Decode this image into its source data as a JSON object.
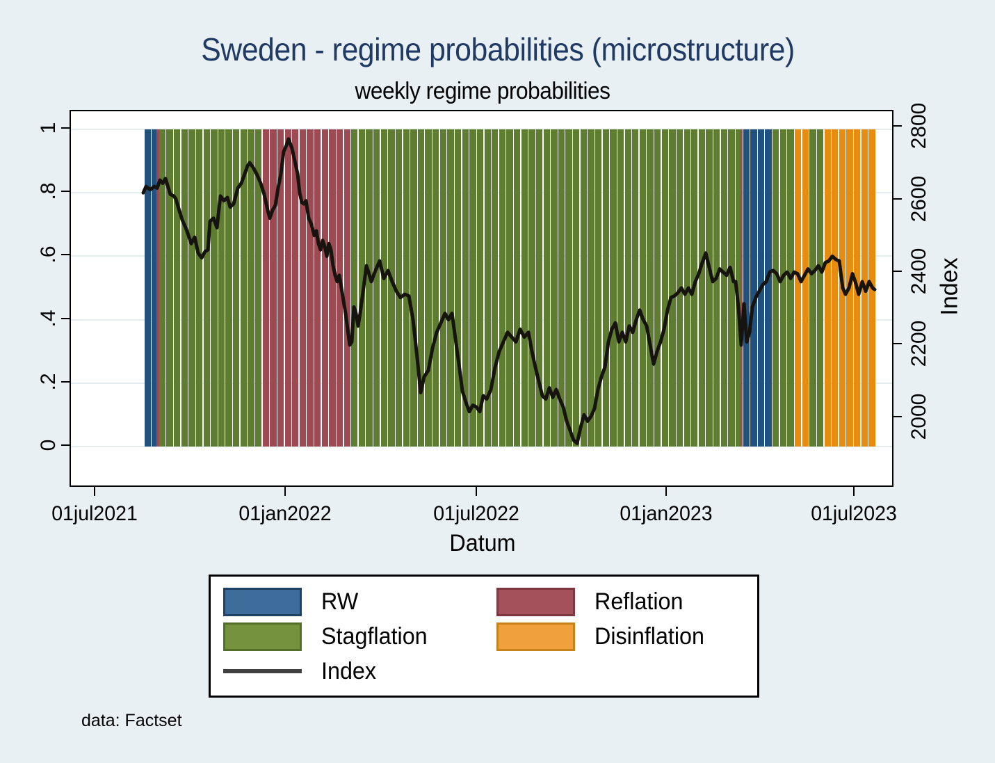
{
  "title": "Sweden - regime probabilities (microstructure)",
  "subtitle": "weekly regime probabilities",
  "note": "data: Factset",
  "colors": {
    "background": "#e9f0f3",
    "title": "#203a66",
    "grid": "#e3ecef",
    "index_line": "#17130e",
    "bar_RW": "#21517e",
    "bar_Stagflation": "#5e7d31",
    "bar_Reflation": "#9d4a53",
    "bar_Disinflation": "#e78c0f",
    "legend_RW": "#3f6d9b",
    "legend_RW_border": "#1e4266",
    "legend_Stagflation": "#75923e",
    "legend_Stagflation_border": "#546f27",
    "legend_Reflation": "#a4515c",
    "legend_Reflation_border": "#7d3540",
    "legend_Disinflation": "#f0a03c",
    "legend_Disinflation_border": "#c8821c",
    "legend_Index_line": "#404040"
  },
  "chart_data": {
    "type": "bar+line",
    "title": "Sweden - regime probabilities (microstructure)",
    "subtitle": "weekly regime probabilities",
    "x_axis": {
      "label": "Datum",
      "ticks": [
        "01jul2021",
        "01jan2022",
        "01jul2022",
        "01jan2023",
        "01jul2023"
      ]
    },
    "y_left_axis": {
      "label": "",
      "ticks": [
        "0",
        ".2",
        ".4",
        ".6",
        ".8",
        "1"
      ],
      "range": [
        0,
        1
      ],
      "note": "regime probability, all weekly bars have height 1"
    },
    "y_right_axis": {
      "label": "Index",
      "ticks": [
        "2000",
        "2200",
        "2400",
        "2600",
        "2800"
      ],
      "index_at_prob0": 1921,
      "index_at_prob1": 2795
    },
    "legend": [
      {
        "label": "RW",
        "type": "bar",
        "fill": "#3f6d9b",
        "border": "#1e4266"
      },
      {
        "label": "Reflation",
        "type": "bar",
        "fill": "#a4515c",
        "border": "#7d3540"
      },
      {
        "label": "Stagflation",
        "type": "bar",
        "fill": "#75923e",
        "border": "#546f27"
      },
      {
        "label": "Disinflation",
        "type": "bar",
        "fill": "#f0a03c",
        "border": "#c8821c"
      },
      {
        "label": "Index",
        "type": "line",
        "stroke": "#404040"
      }
    ],
    "regime_runs": [
      {
        "regime": "RW",
        "weeks": 2
      },
      {
        "regime": "Reflation",
        "weeks": 1,
        "sliver": true
      },
      {
        "regime": "Stagflation",
        "weeks": 14
      },
      {
        "regime": "Reflation",
        "weeks": 12
      },
      {
        "regime": "Stagflation",
        "weeks": 53
      },
      {
        "regime": "Reflation",
        "weeks": 1,
        "sliver": true
      },
      {
        "regime": "RW",
        "weeks": 4
      },
      {
        "regime": "Stagflation",
        "weeks": 3
      },
      {
        "regime": "Disinflation",
        "weeks": 2
      },
      {
        "regime": "Stagflation",
        "weeks": 2
      },
      {
        "regime": "Disinflation",
        "weeks": 7
      }
    ],
    "index_line_points_x_prob": [
      [
        206,
        0.8
      ],
      [
        210,
        0.82
      ],
      [
        216,
        0.81
      ],
      [
        222,
        0.82
      ],
      [
        226,
        0.815
      ],
      [
        230,
        0.84
      ],
      [
        234,
        0.83
      ],
      [
        238,
        0.845
      ],
      [
        245,
        0.795
      ],
      [
        250,
        0.79
      ],
      [
        253,
        0.78
      ],
      [
        257,
        0.75
      ],
      [
        262,
        0.715
      ],
      [
        268,
        0.685
      ],
      [
        275,
        0.64
      ],
      [
        280,
        0.66
      ],
      [
        285,
        0.61
      ],
      [
        290,
        0.595
      ],
      [
        295,
        0.615
      ],
      [
        299,
        0.62
      ],
      [
        302,
        0.71
      ],
      [
        307,
        0.72
      ],
      [
        312,
        0.69
      ],
      [
        317,
        0.79
      ],
      [
        322,
        0.775
      ],
      [
        327,
        0.785
      ],
      [
        331,
        0.755
      ],
      [
        336,
        0.765
      ],
      [
        342,
        0.815
      ],
      [
        347,
        0.83
      ],
      [
        352,
        0.86
      ],
      [
        356,
        0.885
      ],
      [
        359,
        0.895
      ],
      [
        364,
        0.88
      ],
      [
        369,
        0.86
      ],
      [
        375,
        0.83
      ],
      [
        380,
        0.795
      ],
      [
        385,
        0.745
      ],
      [
        388,
        0.72
      ],
      [
        392,
        0.745
      ],
      [
        396,
        0.76
      ],
      [
        400,
        0.815
      ],
      [
        404,
        0.86
      ],
      [
        408,
        0.93
      ],
      [
        412,
        0.95
      ],
      [
        415,
        0.97
      ],
      [
        420,
        0.94
      ],
      [
        424,
        0.9
      ],
      [
        428,
        0.86
      ],
      [
        431,
        0.8
      ],
      [
        434,
        0.77
      ],
      [
        437,
        0.765
      ],
      [
        440,
        0.775
      ],
      [
        444,
        0.72
      ],
      [
        448,
        0.7
      ],
      [
        452,
        0.665
      ],
      [
        455,
        0.68
      ],
      [
        458,
        0.64
      ],
      [
        461,
        0.62
      ],
      [
        464,
        0.65
      ],
      [
        467,
        0.63
      ],
      [
        470,
        0.6
      ],
      [
        473,
        0.64
      ],
      [
        476,
        0.62
      ],
      [
        479,
        0.57
      ],
      [
        482,
        0.54
      ],
      [
        485,
        0.52
      ],
      [
        488,
        0.54
      ],
      [
        491,
        0.5
      ],
      [
        494,
        0.46
      ],
      [
        497,
        0.42
      ],
      [
        500,
        0.37
      ],
      [
        503,
        0.32
      ],
      [
        506,
        0.33
      ],
      [
        509,
        0.44
      ],
      [
        512,
        0.42
      ],
      [
        515,
        0.38
      ],
      [
        518,
        0.42
      ],
      [
        521,
        0.47
      ],
      [
        524,
        0.52
      ],
      [
        527,
        0.57
      ],
      [
        530,
        0.55
      ],
      [
        534,
        0.52
      ],
      [
        540,
        0.555
      ],
      [
        546,
        0.585
      ],
      [
        552,
        0.53
      ],
      [
        558,
        0.555
      ],
      [
        564,
        0.52
      ],
      [
        570,
        0.49
      ],
      [
        576,
        0.47
      ],
      [
        582,
        0.48
      ],
      [
        588,
        0.475
      ],
      [
        594,
        0.4
      ],
      [
        600,
        0.28
      ],
      [
        605,
        0.17
      ],
      [
        610,
        0.22
      ],
      [
        616,
        0.24
      ],
      [
        622,
        0.31
      ],
      [
        628,
        0.36
      ],
      [
        634,
        0.39
      ],
      [
        640,
        0.42
      ],
      [
        645,
        0.4
      ],
      [
        650,
        0.42
      ],
      [
        655,
        0.34
      ],
      [
        660,
        0.26
      ],
      [
        665,
        0.175
      ],
      [
        670,
        0.14
      ],
      [
        675,
        0.11
      ],
      [
        680,
        0.13
      ],
      [
        685,
        0.125
      ],
      [
        690,
        0.11
      ],
      [
        695,
        0.16
      ],
      [
        700,
        0.15
      ],
      [
        706,
        0.18
      ],
      [
        712,
        0.25
      ],
      [
        718,
        0.3
      ],
      [
        724,
        0.33
      ],
      [
        730,
        0.36
      ],
      [
        736,
        0.345
      ],
      [
        742,
        0.33
      ],
      [
        748,
        0.37
      ],
      [
        754,
        0.345
      ],
      [
        760,
        0.36
      ],
      [
        765,
        0.3
      ],
      [
        770,
        0.25
      ],
      [
        775,
        0.205
      ],
      [
        780,
        0.16
      ],
      [
        785,
        0.15
      ],
      [
        790,
        0.185
      ],
      [
        795,
        0.155
      ],
      [
        800,
        0.18
      ],
      [
        805,
        0.15
      ],
      [
        810,
        0.125
      ],
      [
        815,
        0.08
      ],
      [
        820,
        0.05
      ],
      [
        825,
        0.02
      ],
      [
        830,
        0.01
      ],
      [
        835,
        0.06
      ],
      [
        840,
        0.1
      ],
      [
        845,
        0.08
      ],
      [
        850,
        0.095
      ],
      [
        855,
        0.12
      ],
      [
        860,
        0.18
      ],
      [
        865,
        0.22
      ],
      [
        870,
        0.25
      ],
      [
        875,
        0.33
      ],
      [
        880,
        0.37
      ],
      [
        885,
        0.39
      ],
      [
        890,
        0.33
      ],
      [
        895,
        0.36
      ],
      [
        900,
        0.33
      ],
      [
        905,
        0.38
      ],
      [
        910,
        0.36
      ],
      [
        915,
        0.4
      ],
      [
        920,
        0.43
      ],
      [
        925,
        0.4
      ],
      [
        930,
        0.38
      ],
      [
        935,
        0.32
      ],
      [
        940,
        0.26
      ],
      [
        945,
        0.3
      ],
      [
        950,
        0.33
      ],
      [
        955,
        0.37
      ],
      [
        960,
        0.43
      ],
      [
        965,
        0.47
      ],
      [
        970,
        0.475
      ],
      [
        975,
        0.485
      ],
      [
        980,
        0.5
      ],
      [
        985,
        0.48
      ],
      [
        990,
        0.5
      ],
      [
        995,
        0.48
      ],
      [
        1000,
        0.52
      ],
      [
        1005,
        0.545
      ],
      [
        1010,
        0.58
      ],
      [
        1015,
        0.61
      ],
      [
        1020,
        0.565
      ],
      [
        1025,
        0.52
      ],
      [
        1030,
        0.53
      ],
      [
        1035,
        0.56
      ],
      [
        1040,
        0.55
      ],
      [
        1045,
        0.54
      ],
      [
        1050,
        0.565
      ],
      [
        1055,
        0.52
      ],
      [
        1058,
        0.52
      ],
      [
        1062,
        0.44
      ],
      [
        1066,
        0.32
      ],
      [
        1070,
        0.45
      ],
      [
        1074,
        0.33
      ],
      [
        1078,
        0.36
      ],
      [
        1082,
        0.44
      ],
      [
        1087,
        0.47
      ],
      [
        1092,
        0.49
      ],
      [
        1097,
        0.51
      ],
      [
        1102,
        0.52
      ],
      [
        1107,
        0.55
      ],
      [
        1112,
        0.555
      ],
      [
        1117,
        0.545
      ],
      [
        1122,
        0.52
      ],
      [
        1127,
        0.54
      ],
      [
        1132,
        0.55
      ],
      [
        1137,
        0.53
      ],
      [
        1142,
        0.55
      ],
      [
        1147,
        0.545
      ],
      [
        1152,
        0.52
      ],
      [
        1157,
        0.54
      ],
      [
        1162,
        0.56
      ],
      [
        1167,
        0.545
      ],
      [
        1172,
        0.555
      ],
      [
        1177,
        0.57
      ],
      [
        1182,
        0.55
      ],
      [
        1187,
        0.58
      ],
      [
        1192,
        0.585
      ],
      [
        1197,
        0.6
      ],
      [
        1202,
        0.59
      ],
      [
        1207,
        0.585
      ],
      [
        1212,
        0.5
      ],
      [
        1216,
        0.48
      ],
      [
        1221,
        0.5
      ],
      [
        1226,
        0.545
      ],
      [
        1230,
        0.52
      ],
      [
        1235,
        0.48
      ],
      [
        1240,
        0.52
      ],
      [
        1245,
        0.49
      ],
      [
        1250,
        0.52
      ],
      [
        1255,
        0.5
      ],
      [
        1258,
        0.495
      ]
    ]
  }
}
